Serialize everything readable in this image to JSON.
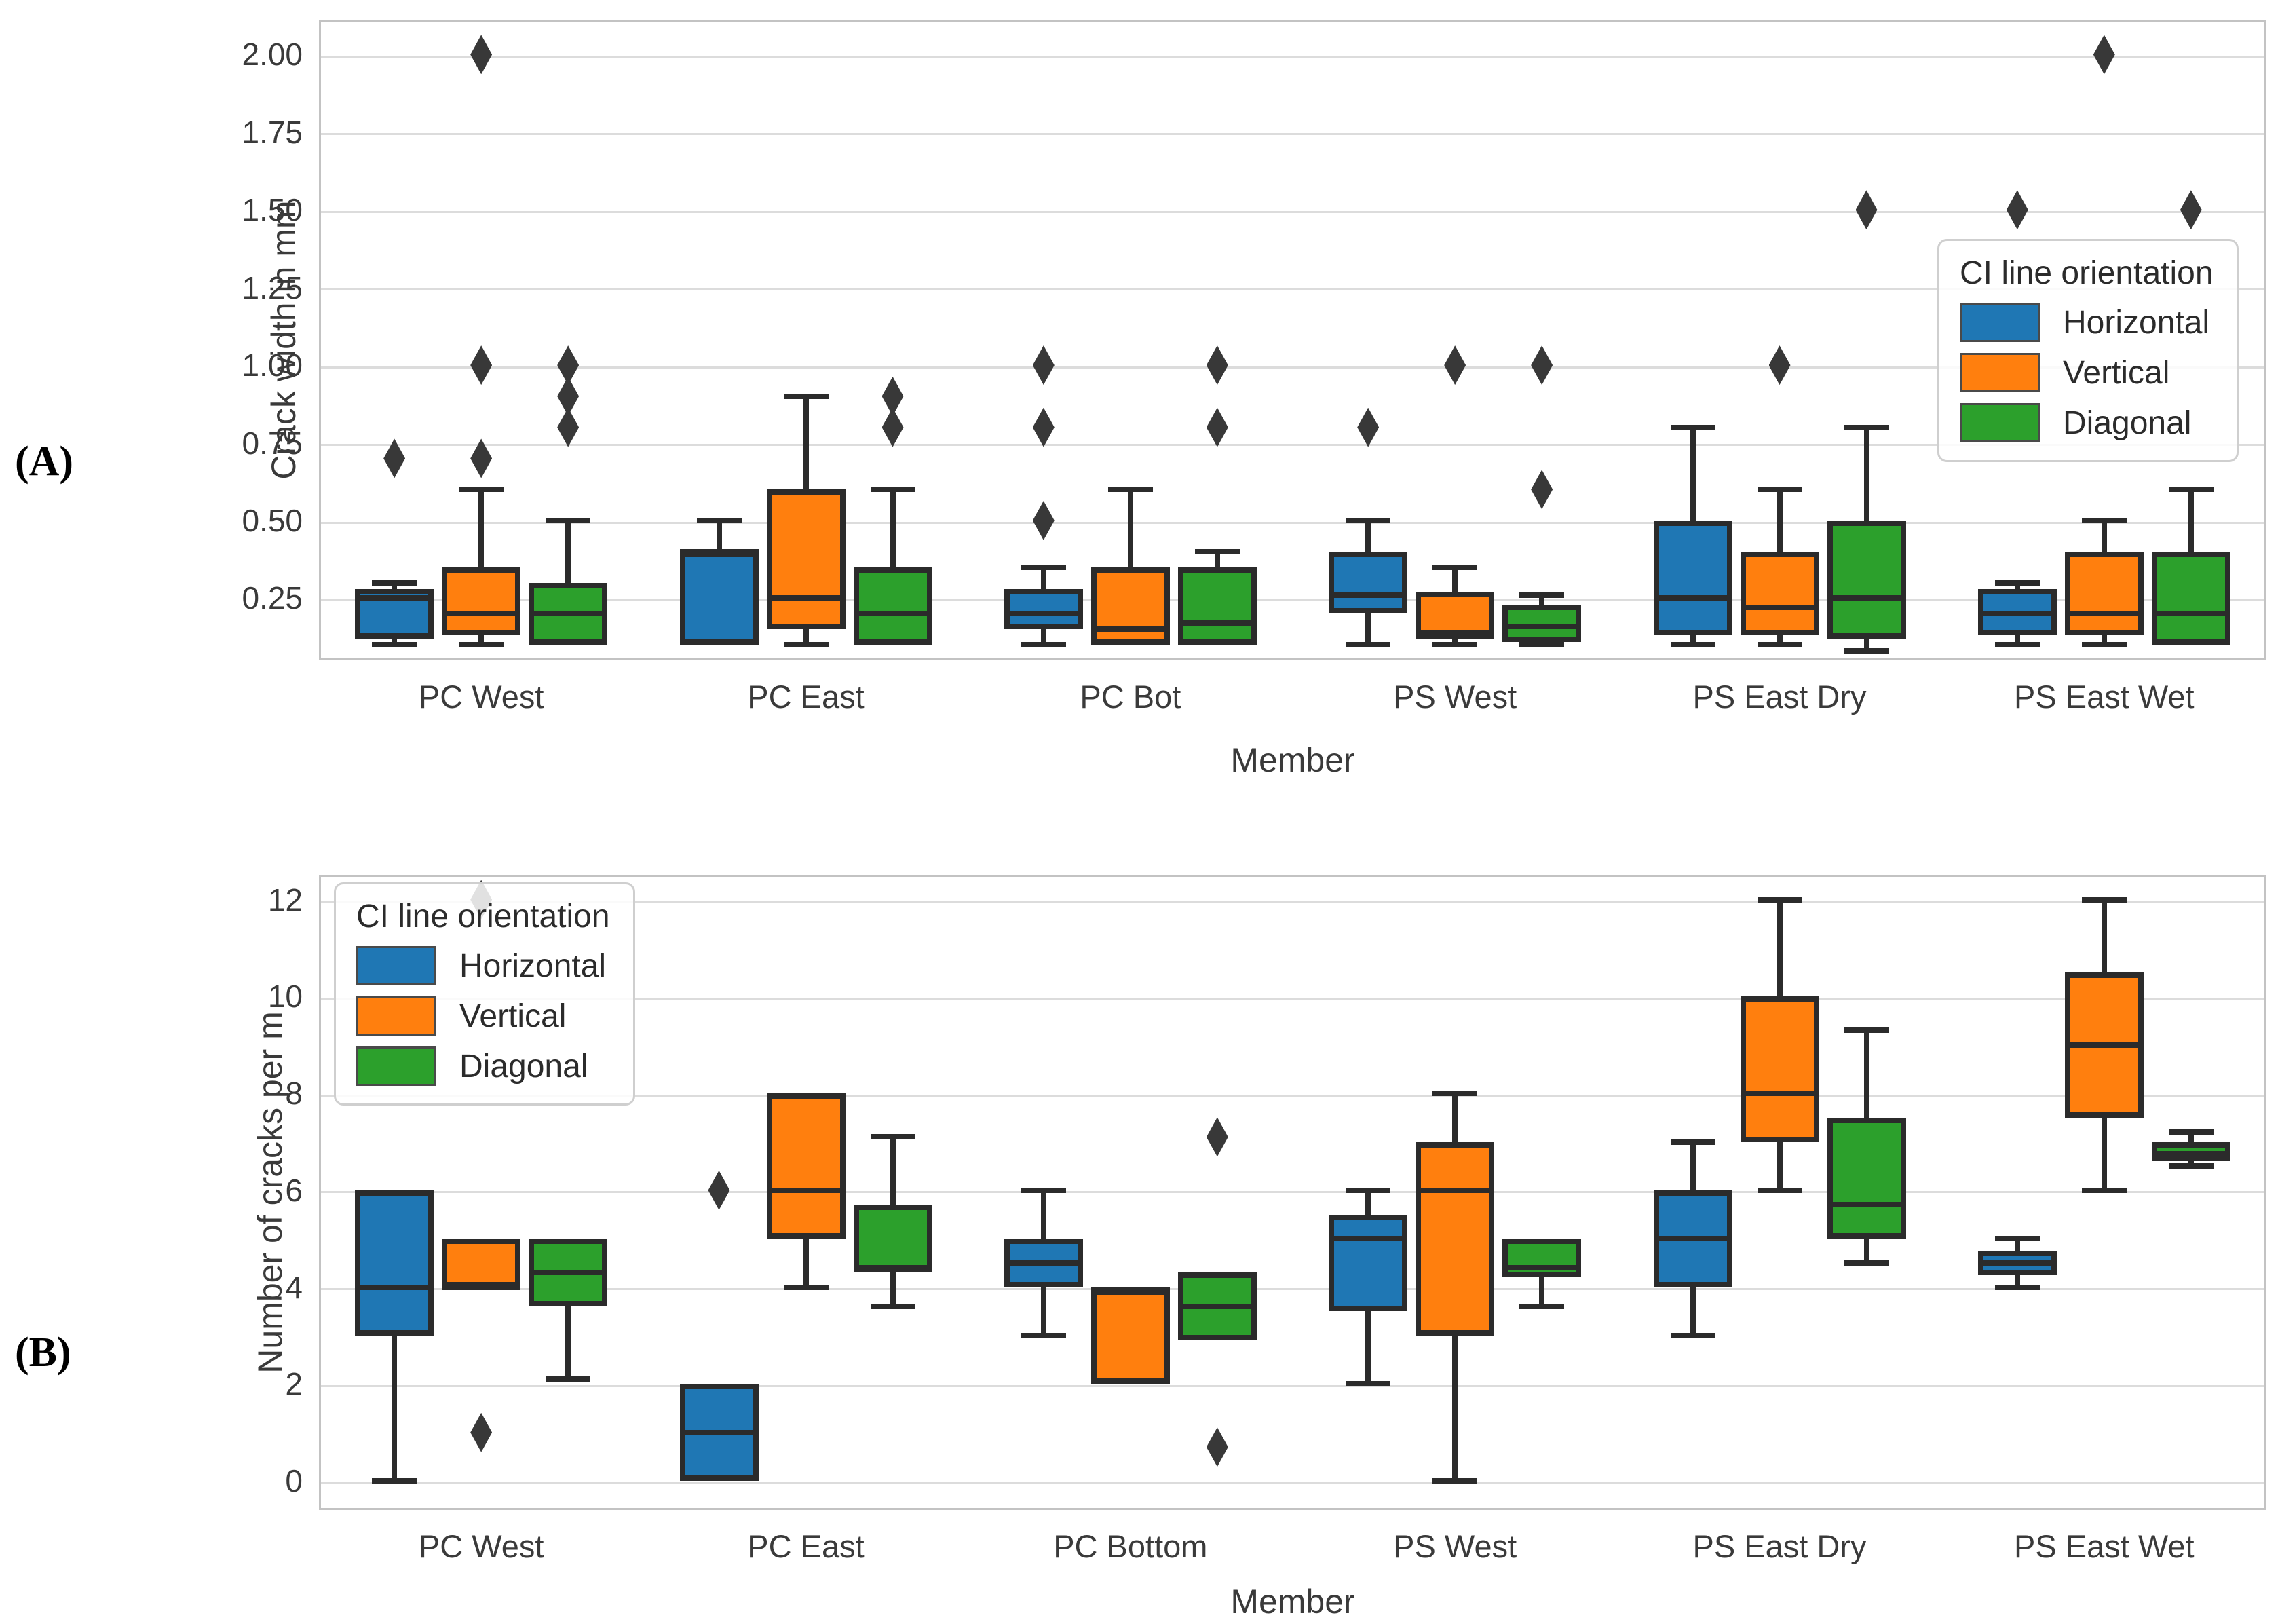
{
  "page_background": "#ffffff",
  "legend": {
    "title": "CI line orientation",
    "entries": [
      {
        "label": "Horizontal",
        "color": "#1f77b4"
      },
      {
        "label": "Vertical",
        "color": "#ff7f0e"
      },
      {
        "label": "Diagonal",
        "color": "#2ca02c"
      }
    ]
  },
  "chart_data": [
    {
      "type": "box",
      "panel_label": "(A)",
      "xlabel": "Member",
      "ylabel": "Crack width in mm",
      "ylim": [
        0.05,
        2.11
      ],
      "grid": true,
      "legend_position": "upper right",
      "yticks": [
        {
          "value": 2.0,
          "label": "2.00"
        },
        {
          "value": 1.75,
          "label": "1.75"
        },
        {
          "value": 1.5,
          "label": "1.50"
        },
        {
          "value": 1.25,
          "label": "1.25"
        },
        {
          "value": 1.0,
          "label": "1.00"
        },
        {
          "value": 0.75,
          "label": "0.75"
        },
        {
          "value": 0.5,
          "label": "0.50"
        },
        {
          "value": 0.25,
          "label": "0.25"
        }
      ],
      "categories": [
        "PC West",
        "PC East",
        "PC Bot",
        "PS West",
        "PS East Dry",
        "PS East Wet"
      ],
      "series": [
        {
          "name": "Horizontal",
          "color": "#1f77b4",
          "boxes": [
            {
              "whislo": 0.1,
              "q1": 0.12,
              "med": 0.25,
              "q3": 0.28,
              "whishi": 0.3,
              "outliers": [
                0.7
              ]
            },
            {
              "whislo": 0.1,
              "q1": 0.1,
              "med": 0.4,
              "q3": 0.4,
              "whishi": 0.5,
              "outliers": []
            },
            {
              "whislo": 0.1,
              "q1": 0.15,
              "med": 0.2,
              "q3": 0.28,
              "whishi": 0.35,
              "outliers": [
                0.5,
                0.8,
                1.0
              ]
            },
            {
              "whislo": 0.1,
              "q1": 0.2,
              "med": 0.26,
              "q3": 0.4,
              "whishi": 0.5,
              "outliers": [
                0.8
              ]
            },
            {
              "whislo": 0.1,
              "q1": 0.13,
              "med": 0.25,
              "q3": 0.5,
              "whishi": 0.8,
              "outliers": []
            },
            {
              "whislo": 0.1,
              "q1": 0.13,
              "med": 0.2,
              "q3": 0.28,
              "whishi": 0.3,
              "outliers": [
                1.5
              ]
            }
          ]
        },
        {
          "name": "Vertical",
          "color": "#ff7f0e",
          "boxes": [
            {
              "whislo": 0.1,
              "q1": 0.13,
              "med": 0.2,
              "q3": 0.35,
              "whishi": 0.6,
              "outliers": [
                0.7,
                1.0,
                2.0
              ]
            },
            {
              "whislo": 0.1,
              "q1": 0.15,
              "med": 0.25,
              "q3": 0.6,
              "whishi": 0.9,
              "outliers": []
            },
            {
              "whislo": 0.1,
              "q1": 0.1,
              "med": 0.15,
              "q3": 0.35,
              "whishi": 0.6,
              "outliers": []
            },
            {
              "whislo": 0.1,
              "q1": 0.12,
              "med": 0.14,
              "q3": 0.27,
              "whishi": 0.35,
              "outliers": [
                1.0
              ]
            },
            {
              "whislo": 0.1,
              "q1": 0.13,
              "med": 0.22,
              "q3": 0.4,
              "whishi": 0.6,
              "outliers": [
                1.0
              ]
            },
            {
              "whislo": 0.1,
              "q1": 0.13,
              "med": 0.2,
              "q3": 0.4,
              "whishi": 0.5,
              "outliers": [
                2.0
              ]
            }
          ]
        },
        {
          "name": "Diagonal",
          "color": "#2ca02c",
          "boxes": [
            {
              "whislo": 0.1,
              "q1": 0.1,
              "med": 0.2,
              "q3": 0.3,
              "whishi": 0.5,
              "outliers": [
                0.8,
                0.9,
                1.0
              ]
            },
            {
              "whislo": 0.1,
              "q1": 0.1,
              "med": 0.2,
              "q3": 0.35,
              "whishi": 0.6,
              "outliers": [
                0.8,
                0.9
              ]
            },
            {
              "whislo": 0.1,
              "q1": 0.1,
              "med": 0.17,
              "q3": 0.35,
              "whishi": 0.4,
              "outliers": [
                0.8,
                1.0
              ]
            },
            {
              "whislo": 0.1,
              "q1": 0.11,
              "med": 0.16,
              "q3": 0.23,
              "whishi": 0.26,
              "outliers": [
                0.6,
                1.0
              ]
            },
            {
              "whislo": 0.08,
              "q1": 0.12,
              "med": 0.25,
              "q3": 0.5,
              "whishi": 0.8,
              "outliers": [
                1.5
              ]
            },
            {
              "whislo": 0.1,
              "q1": 0.1,
              "med": 0.2,
              "q3": 0.4,
              "whishi": 0.6,
              "outliers": [
                1.5
              ]
            }
          ]
        }
      ]
    },
    {
      "type": "box",
      "panel_label": "(B)",
      "xlabel": "Member",
      "ylabel": "Number of cracks per m",
      "ylim": [
        -0.6,
        12.5
      ],
      "grid": true,
      "legend_position": "upper left",
      "yticks": [
        {
          "value": 12,
          "label": "12"
        },
        {
          "value": 10,
          "label": "10"
        },
        {
          "value": 8,
          "label": "8"
        },
        {
          "value": 6,
          "label": "6"
        },
        {
          "value": 4,
          "label": "4"
        },
        {
          "value": 2,
          "label": "2"
        },
        {
          "value": 0,
          "label": "0"
        }
      ],
      "categories": [
        "PC West",
        "PC East",
        "PC Bottom",
        "PS West",
        "PS East Dry",
        "PS East Wet"
      ],
      "series": [
        {
          "name": "Horizontal",
          "color": "#1f77b4",
          "boxes": [
            {
              "whislo": 0.0,
              "q1": 3.0,
              "med": 4.0,
              "q3": 6.0,
              "whishi": 6.0,
              "outliers": []
            },
            {
              "whislo": 0.0,
              "q1": 0.0,
              "med": 1.0,
              "q3": 2.0,
              "whishi": 2.0,
              "outliers": [
                6.0
              ]
            },
            {
              "whislo": 3.0,
              "q1": 4.0,
              "med": 4.5,
              "q3": 5.0,
              "whishi": 6.0,
              "outliers": []
            },
            {
              "whislo": 2.0,
              "q1": 3.5,
              "med": 5.0,
              "q3": 5.5,
              "whishi": 6.0,
              "outliers": []
            },
            {
              "whislo": 3.0,
              "q1": 4.0,
              "med": 5.0,
              "q3": 6.0,
              "whishi": 7.0,
              "outliers": []
            },
            {
              "whislo": 4.0,
              "q1": 4.25,
              "med": 4.5,
              "q3": 4.75,
              "whishi": 5.0,
              "outliers": []
            }
          ]
        },
        {
          "name": "Vertical",
          "color": "#ff7f0e",
          "boxes": [
            {
              "whislo": 4.0,
              "q1": 4.0,
              "med": 4.0,
              "q3": 5.0,
              "whishi": 5.0,
              "outliers": [
                1.0,
                12.0
              ]
            },
            {
              "whislo": 4.0,
              "q1": 5.0,
              "med": 6.0,
              "q3": 8.0,
              "whishi": 8.0,
              "outliers": []
            },
            {
              "whislo": 2.0,
              "q1": 2.0,
              "med": 3.9,
              "q3": 4.0,
              "whishi": 4.0,
              "outliers": []
            },
            {
              "whislo": 0.0,
              "q1": 3.0,
              "med": 6.0,
              "q3": 7.0,
              "whishi": 8.0,
              "outliers": []
            },
            {
              "whislo": 6.0,
              "q1": 7.0,
              "med": 8.0,
              "q3": 10.0,
              "whishi": 12.0,
              "outliers": []
            },
            {
              "whislo": 6.0,
              "q1": 7.5,
              "med": 9.0,
              "q3": 10.5,
              "whishi": 12.0,
              "outliers": []
            }
          ]
        },
        {
          "name": "Diagonal",
          "color": "#2ca02c",
          "boxes": [
            {
              "whislo": 2.1,
              "q1": 3.6,
              "med": 4.3,
              "q3": 5.0,
              "whishi": 5.0,
              "outliers": []
            },
            {
              "whislo": 3.6,
              "q1": 4.3,
              "med": 4.4,
              "q3": 5.7,
              "whishi": 7.1,
              "outliers": []
            },
            {
              "whislo": 2.9,
              "q1": 2.9,
              "med": 3.6,
              "q3": 4.3,
              "whishi": 4.3,
              "outliers": [
                0.7,
                7.1
              ]
            },
            {
              "whislo": 3.6,
              "q1": 4.2,
              "med": 4.4,
              "q3": 5.0,
              "whishi": 5.0,
              "outliers": []
            },
            {
              "whislo": 4.5,
              "q1": 5.0,
              "med": 5.7,
              "q3": 7.5,
              "whishi": 9.3,
              "outliers": []
            },
            {
              "whislo": 6.5,
              "q1": 6.6,
              "med": 6.75,
              "q3": 7.0,
              "whishi": 7.2,
              "outliers": []
            }
          ]
        }
      ]
    }
  ]
}
